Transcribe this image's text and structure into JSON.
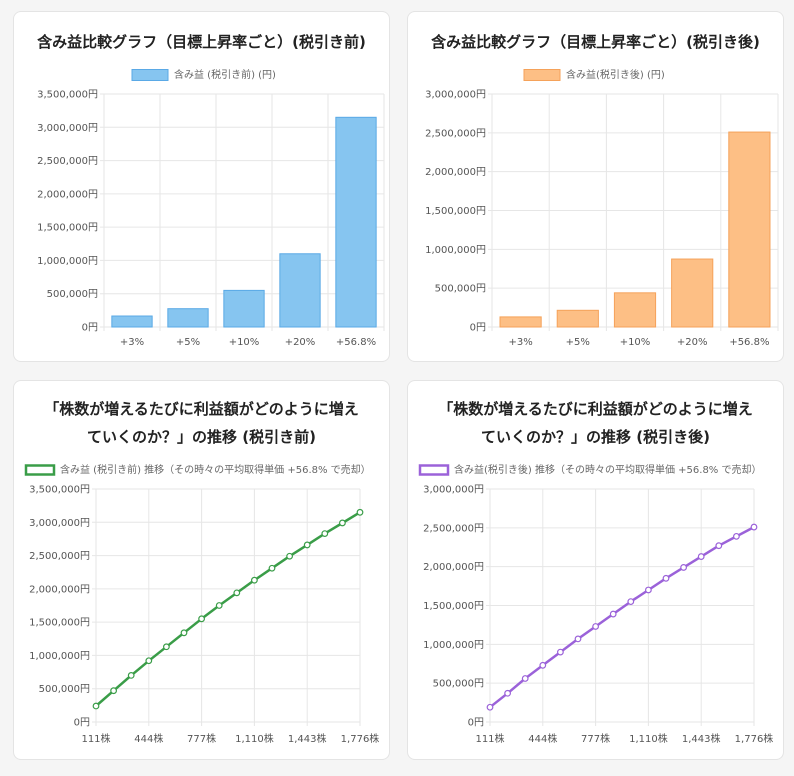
{
  "chart_data": [
    {
      "type": "bar",
      "title": "含み益比較グラフ（目標上昇率ごと）(税引き前)",
      "legend": "含み益 (税引き前) (円)",
      "categories": [
        "+3%",
        "+5%",
        "+10%",
        "+20%",
        "+56.8%"
      ],
      "values": [
        165000,
        275000,
        550000,
        1100000,
        3150000
      ],
      "ylim": [
        0,
        3500000
      ],
      "yticks": [
        0,
        500000,
        1000000,
        1500000,
        2000000,
        2500000,
        3000000,
        3500000
      ],
      "unit": "円",
      "color_fill": "#86c5f0",
      "color_line": "#5aa9e6"
    },
    {
      "type": "bar",
      "title": "含み益比較グラフ（目標上昇率ごと）(税引き後)",
      "legend": "含み益(税引き後) (円)",
      "categories": [
        "+3%",
        "+5%",
        "+10%",
        "+20%",
        "+56.8%"
      ],
      "values": [
        130000,
        215000,
        440000,
        875000,
        2510000
      ],
      "ylim": [
        0,
        3000000
      ],
      "yticks": [
        0,
        500000,
        1000000,
        1500000,
        2000000,
        2500000,
        3000000
      ],
      "unit": "円",
      "color_fill": "#fdbf85",
      "color_line": "#f5a25a"
    },
    {
      "type": "line",
      "title": "「株数が増えるたびに利益額がどのように増えていくのか？」の推移 (税引き前)",
      "legend": "含み益 (税引き前) 推移（その時々の平均取得単価 +56.8% で売却）",
      "x": [
        111,
        222,
        333,
        444,
        555,
        666,
        777,
        888,
        999,
        1110,
        1221,
        1332,
        1443,
        1554,
        1665,
        1776
      ],
      "xticks": [
        "111株",
        "444株",
        "777株",
        "1,110株",
        "1,443株",
        "1,776株"
      ],
      "xtick_values": [
        111,
        444,
        777,
        1110,
        1443,
        1776
      ],
      "values": [
        240000,
        470000,
        700000,
        920000,
        1130000,
        1340000,
        1550000,
        1750000,
        1940000,
        2130000,
        2310000,
        2490000,
        2660000,
        2830000,
        2990000,
        3150000
      ],
      "ylim": [
        0,
        3500000
      ],
      "yticks": [
        0,
        500000,
        1000000,
        1500000,
        2000000,
        2500000,
        3000000,
        3500000
      ],
      "unit": "円",
      "color_line": "#3a9d48",
      "color_fill": "#ffffff"
    },
    {
      "type": "line",
      "title": "「株数が増えるたびに利益額がどのように増えていくのか？」の推移 (税引き後)",
      "legend": "含み益(税引き後) 推移（その時々の平均取得単価 +56.8% で売却）",
      "x": [
        111,
        222,
        333,
        444,
        555,
        666,
        777,
        888,
        999,
        1110,
        1221,
        1332,
        1443,
        1554,
        1665,
        1776
      ],
      "xticks": [
        "111株",
        "444株",
        "777株",
        "1,110株",
        "1,443株",
        "1,776株"
      ],
      "xtick_values": [
        111,
        444,
        777,
        1110,
        1443,
        1776
      ],
      "values": [
        190000,
        370000,
        560000,
        730000,
        900000,
        1070000,
        1230000,
        1390000,
        1550000,
        1700000,
        1850000,
        1990000,
        2130000,
        2270000,
        2390000,
        2510000
      ],
      "ylim": [
        0,
        3000000
      ],
      "yticks": [
        0,
        500000,
        1000000,
        1500000,
        2000000,
        2500000,
        3000000
      ],
      "unit": "円",
      "color_line": "#9b62d9",
      "color_fill": "#ffffff"
    }
  ]
}
